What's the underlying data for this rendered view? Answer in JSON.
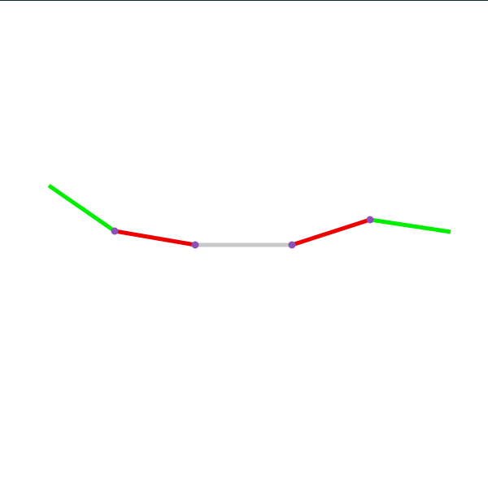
{
  "diagram": {
    "background": "#ffffff",
    "top_strip_color": "#0b2a3a",
    "segment_colors": {
      "green": "#00ee00",
      "red": "#ee0000",
      "gray": "#c8c8c8"
    },
    "vertex_color": "#8e4fb6",
    "segments": [
      {
        "from": "p0",
        "to": "p1",
        "color_key": "green"
      },
      {
        "from": "p1",
        "to": "p2",
        "color_key": "red"
      },
      {
        "from": "p2",
        "to": "p3",
        "color_key": "gray"
      },
      {
        "from": "p3",
        "to": "p4",
        "color_key": "red"
      },
      {
        "from": "p4",
        "to": "p5",
        "color_key": "green"
      }
    ],
    "vertices": [
      "p1",
      "p2",
      "p3",
      "p4"
    ]
  }
}
